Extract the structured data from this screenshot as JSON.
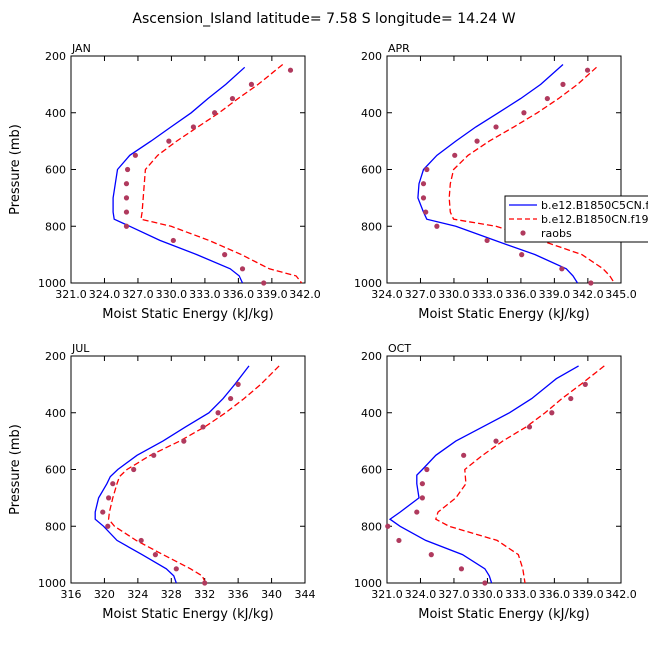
{
  "title": "Ascension_Island   latitude=  7.58 S  longitude=  14.24 W",
  "legend": {
    "panel": 1,
    "entries": [
      {
        "label": "b.e12.B1850C5CN.f19_g16.1",
        "style": "solid",
        "color": "#0000ff"
      },
      {
        "label": "b.e12.B1850CN.f19_g16.1",
        "style": "dashed",
        "color": "#ff0000"
      },
      {
        "label": "raobs",
        "style": "marker",
        "color": "#b03a5e"
      }
    ]
  },
  "colors": {
    "model_c5": "#0000ff",
    "model_cn": "#ff0000",
    "raobs": "#b03a5e"
  },
  "chart_data": [
    {
      "type": "line",
      "panel_label": "JAN",
      "xlabel": "Moist Static Energy (kJ/kg)",
      "ylabel": "Pressure (mb)",
      "xlim": [
        321.03,
        342.0
      ],
      "ylim": [
        1000,
        200
      ],
      "xticks": [
        321.03,
        324.03,
        327.03,
        330.03,
        333.03,
        336.03,
        339.03,
        342.0
      ],
      "xtick_labels": [
        "321.0",
        "324.0",
        "327.0",
        "330.0",
        "333.0",
        "336.0",
        "339.0",
        "342.0"
      ],
      "yticks": [
        200,
        400,
        600,
        800,
        1000
      ],
      "ytick_labels": [
        "200",
        "400",
        "600",
        "800",
        "1000"
      ],
      "series": [
        {
          "name": "b.e12.B1850C5CN.f19_g16.1",
          "pressure": [
            240,
            300,
            350,
            400,
            450,
            500,
            550,
            600,
            650,
            700,
            750,
            775,
            800,
            850,
            900,
            950,
            975,
            1000
          ],
          "mse": [
            336.6,
            334.9,
            333.3,
            331.8,
            330.0,
            328.2,
            326.3,
            325.2,
            325.0,
            324.8,
            324.8,
            324.9,
            326.3,
            329.0,
            332.3,
            335.3,
            336.1,
            336.4
          ]
        },
        {
          "name": "b.e12.B1850CN.f19_g16.1",
          "pressure": [
            230,
            300,
            350,
            400,
            450,
            500,
            550,
            600,
            650,
            700,
            750,
            775,
            800,
            850,
            900,
            950,
            975,
            1000
          ],
          "mse": [
            340.0,
            337.8,
            336.0,
            334.3,
            332.4,
            330.5,
            328.8,
            327.7,
            327.6,
            327.5,
            327.4,
            327.3,
            330.0,
            333.4,
            336.3,
            338.8,
            341.2,
            341.7
          ]
        },
        {
          "name": "raobs",
          "pressure": [
            250,
            300,
            350,
            400,
            450,
            500,
            550,
            600,
            650,
            700,
            750,
            800,
            850,
            900,
            950,
            1000
          ],
          "mse": [
            340.7,
            337.2,
            335.5,
            333.9,
            332.0,
            329.8,
            326.8,
            326.1,
            326.0,
            326.0,
            326.0,
            326.0,
            330.2,
            334.8,
            336.4,
            338.3
          ]
        }
      ]
    },
    {
      "type": "line",
      "panel_label": "APR",
      "xlabel": "Moist Static Energy (kJ/kg)",
      "ylabel": "",
      "xlim": [
        324.03,
        345.0
      ],
      "ylim": [
        1000,
        200
      ],
      "xticks": [
        324.03,
        327.03,
        330.03,
        333.03,
        336.03,
        339.03,
        342.03,
        345.0
      ],
      "xtick_labels": [
        "324.0",
        "327.0",
        "330.0",
        "333.0",
        "336.0",
        "339.0",
        "342.0",
        "345.0"
      ],
      "yticks": [
        200,
        400,
        600,
        800,
        1000
      ],
      "ytick_labels": [
        "200",
        "400",
        "600",
        "800",
        "1000"
      ],
      "series": [
        {
          "name": "b.e12.B1850C5CN.f19_g16.1",
          "pressure": [
            230,
            300,
            350,
            400,
            450,
            500,
            550,
            600,
            650,
            700,
            750,
            775,
            800,
            850,
            900,
            950,
            975,
            1000
          ],
          "mse": [
            339.8,
            337.8,
            336.0,
            334.0,
            332.0,
            330.2,
            328.5,
            327.3,
            326.9,
            326.8,
            327.3,
            327.6,
            330.2,
            333.7,
            337.3,
            340.1,
            340.7,
            341.1
          ]
        },
        {
          "name": "b.e12.B1850CN.f19_g16.1",
          "pressure": [
            240,
            300,
            350,
            400,
            450,
            500,
            550,
            600,
            650,
            700,
            750,
            775,
            800,
            850,
            900,
            950,
            975,
            1000
          ],
          "mse": [
            342.8,
            341.1,
            339.4,
            337.5,
            335.4,
            333.2,
            331.3,
            330.0,
            329.7,
            329.6,
            329.7,
            330.0,
            333.8,
            337.8,
            341.5,
            343.4,
            344.0,
            344.4
          ]
        },
        {
          "name": "raobs",
          "pressure": [
            250,
            300,
            350,
            400,
            450,
            500,
            550,
            600,
            650,
            700,
            750,
            800,
            850,
            900,
            950,
            1000
          ],
          "mse": [
            342.0,
            339.8,
            338.4,
            336.3,
            333.8,
            332.1,
            330.1,
            327.6,
            327.3,
            327.3,
            327.5,
            328.5,
            333.0,
            336.1,
            339.7,
            342.3
          ]
        }
      ]
    },
    {
      "type": "line",
      "panel_label": "JUL",
      "xlabel": "Moist Static Energy (kJ/kg)",
      "ylabel": "Pressure (mb)",
      "xlim": [
        316,
        344
      ],
      "ylim": [
        1000,
        200
      ],
      "xticks": [
        316,
        320,
        324,
        328,
        332,
        336,
        340,
        344
      ],
      "xtick_labels": [
        "316",
        "320",
        "324",
        "328",
        "332",
        "336",
        "340",
        "344"
      ],
      "yticks": [
        200,
        400,
        600,
        800,
        1000
      ],
      "ytick_labels": [
        "200",
        "400",
        "600",
        "800",
        "1000"
      ],
      "series": [
        {
          "name": "b.e12.B1850C5CN.f19_g16.1",
          "pressure": [
            235,
            300,
            350,
            400,
            450,
            500,
            550,
            600,
            625,
            650,
            700,
            750,
            775,
            800,
            850,
            900,
            950,
            975,
            1000
          ],
          "mse": [
            337.3,
            335.6,
            334.2,
            332.5,
            329.7,
            327.0,
            323.9,
            321.6,
            320.7,
            320.3,
            319.3,
            318.9,
            318.9,
            319.9,
            321.5,
            324.5,
            327.4,
            328.3,
            328.6
          ]
        },
        {
          "name": "b.e12.B1850CN.f19_g16.1",
          "pressure": [
            235,
            300,
            350,
            400,
            450,
            500,
            550,
            600,
            625,
            650,
            700,
            750,
            775,
            800,
            850,
            900,
            950,
            975,
            1000
          ],
          "mse": [
            340.9,
            338.7,
            336.7,
            334.5,
            332.0,
            329.0,
            325.5,
            322.7,
            321.8,
            321.5,
            321.0,
            320.6,
            320.5,
            321.2,
            323.8,
            327.0,
            330.3,
            331.7,
            332.1
          ]
        },
        {
          "name": "raobs",
          "pressure": [
            300,
            350,
            400,
            450,
            500,
            550,
            600,
            650,
            700,
            750,
            800,
            850,
            900,
            950,
            1000
          ],
          "mse": [
            336.0,
            335.1,
            333.6,
            331.8,
            329.5,
            325.9,
            323.5,
            321.0,
            320.5,
            319.8,
            320.4,
            324.4,
            326.1,
            328.6,
            332.0
          ]
        }
      ]
    },
    {
      "type": "line",
      "panel_label": "OCT",
      "xlabel": "Moist Static Energy (kJ/kg)",
      "ylabel": "",
      "xlim": [
        321.03,
        342.0
      ],
      "ylim": [
        1000,
        200
      ],
      "xticks": [
        321.03,
        324.03,
        327.03,
        330.03,
        333.03,
        336.03,
        339.03,
        342.0
      ],
      "xtick_labels": [
        "321.0",
        "324.0",
        "327.0",
        "330.0",
        "333.0",
        "336.0",
        "339.0",
        "342.0"
      ],
      "yticks": [
        200,
        400,
        600,
        800,
        1000
      ],
      "ytick_labels": [
        "200",
        "400",
        "600",
        "800",
        "1000"
      ],
      "series": [
        {
          "name": "b.e12.B1850C5CN.f19_g16.1",
          "pressure": [
            235,
            280,
            350,
            400,
            450,
            500,
            550,
            600,
            620,
            650,
            700,
            750,
            775,
            800,
            850,
            900,
            950,
            975,
            1000
          ],
          "mse": [
            338.2,
            336.2,
            334.0,
            332.0,
            329.6,
            327.2,
            325.4,
            324.2,
            323.7,
            323.7,
            323.9,
            322.2,
            321.3,
            322.2,
            324.5,
            327.8,
            329.8,
            330.2,
            330.4
          ]
        },
        {
          "name": "b.e12.B1850CN.f19_g16.1",
          "pressure": [
            235,
            300,
            350,
            400,
            450,
            500,
            550,
            600,
            650,
            700,
            750,
            775,
            800,
            850,
            900,
            950,
            975,
            1000
          ],
          "mse": [
            340.5,
            338.4,
            336.7,
            335.2,
            333.5,
            331.4,
            329.6,
            328.0,
            328.1,
            327.2,
            325.6,
            325.4,
            326.6,
            330.9,
            332.8,
            333.2,
            333.3,
            333.4
          ]
        },
        {
          "name": "raobs",
          "pressure": [
            300,
            350,
            400,
            450,
            500,
            550,
            600,
            650,
            700,
            750,
            800,
            850,
            900,
            950,
            1000
          ],
          "mse": [
            338.8,
            337.5,
            335.8,
            333.8,
            330.8,
            327.9,
            324.6,
            324.2,
            324.2,
            323.7,
            321.1,
            322.1,
            325.0,
            327.7,
            329.8
          ]
        }
      ]
    }
  ]
}
